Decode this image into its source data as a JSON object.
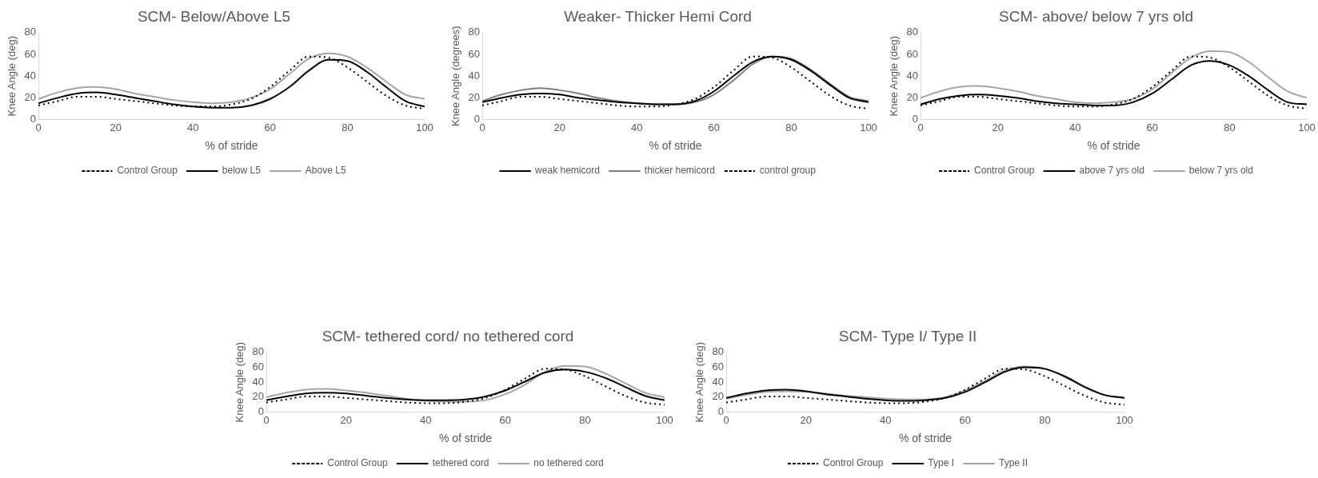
{
  "chart_data": [
    {
      "type": "line",
      "title": "SCM- Below/Above L5",
      "xlabel": "% of stride",
      "ylabel": "Knee Angle (deg)",
      "xlim": [
        0,
        100
      ],
      "xticks": [
        0,
        20,
        40,
        60,
        80,
        100
      ],
      "ylim": [
        0,
        80
      ],
      "yticks": [
        0,
        20,
        40,
        60,
        80
      ],
      "grid": false,
      "legend": "bottom",
      "marker": "none",
      "x": [
        0,
        5,
        10,
        15,
        20,
        25,
        30,
        35,
        40,
        45,
        50,
        55,
        60,
        65,
        70,
        75,
        80,
        85,
        90,
        95,
        100
      ],
      "series": [
        {
          "name": "Control Group",
          "color": "#000000",
          "line_style": "dotted",
          "values": [
            13,
            17,
            21,
            21,
            19,
            17,
            15,
            13,
            12,
            12,
            14,
            19,
            30,
            45,
            58,
            57,
            48,
            35,
            22,
            13,
            10
          ]
        },
        {
          "name": "below L5",
          "color": "#000000",
          "line_style": "solid",
          "values": [
            15,
            20,
            24,
            25,
            23,
            20,
            17,
            14,
            12,
            11,
            11,
            13,
            19,
            30,
            45,
            55,
            54,
            44,
            30,
            17,
            12
          ]
        },
        {
          "name": "Above L5",
          "color": "#a6a6a6",
          "line_style": "solid",
          "values": [
            19,
            25,
            29,
            30,
            28,
            24,
            21,
            18,
            16,
            15,
            16,
            20,
            28,
            42,
            56,
            61,
            58,
            48,
            35,
            23,
            19
          ]
        }
      ]
    },
    {
      "type": "line",
      "title": "Weaker- Thicker Hemi Cord",
      "xlabel": "% of stride",
      "ylabel": "Knee Angle (degrees)",
      "xlim": [
        0,
        100
      ],
      "xticks": [
        0,
        20,
        40,
        60,
        80,
        100
      ],
      "ylim": [
        0,
        80
      ],
      "yticks": [
        0,
        20,
        40,
        60,
        80
      ],
      "grid": false,
      "legend": "bottom",
      "marker": "none",
      "x": [
        0,
        5,
        10,
        15,
        20,
        25,
        30,
        35,
        40,
        45,
        50,
        55,
        60,
        65,
        70,
        75,
        80,
        85,
        90,
        95,
        100
      ],
      "series": [
        {
          "name": "weak hemicord",
          "color": "#000000",
          "line_style": "solid",
          "values": [
            16,
            20,
            23,
            24,
            23,
            20,
            18,
            16,
            15,
            14,
            14,
            17,
            26,
            40,
            53,
            58,
            55,
            45,
            32,
            20,
            16
          ]
        },
        {
          "name": "thicker hemicord",
          "color": "#7f7f7f",
          "line_style": "solid",
          "values": [
            17,
            23,
            27,
            29,
            27,
            24,
            20,
            17,
            15,
            14,
            14,
            16,
            23,
            36,
            51,
            58,
            56,
            46,
            33,
            21,
            17
          ]
        },
        {
          "name": "control group",
          "color": "#000000",
          "line_style": "dotted",
          "values": [
            13,
            17,
            21,
            21,
            19,
            17,
            15,
            13,
            12,
            12,
            14,
            19,
            30,
            45,
            58,
            57,
            48,
            35,
            22,
            13,
            10
          ]
        }
      ]
    },
    {
      "type": "line",
      "title": "SCM- above/ below 7 yrs old",
      "xlabel": "% of stride",
      "ylabel": "Knee Angle (deg)",
      "xlim": [
        0,
        100
      ],
      "xticks": [
        0,
        20,
        40,
        60,
        80,
        100
      ],
      "ylim": [
        0,
        80
      ],
      "yticks": [
        0,
        20,
        40,
        60,
        80
      ],
      "grid": false,
      "legend": "bottom",
      "marker": "none",
      "x": [
        0,
        5,
        10,
        15,
        20,
        25,
        30,
        35,
        40,
        45,
        50,
        55,
        60,
        65,
        70,
        75,
        80,
        85,
        90,
        95,
        100
      ],
      "series": [
        {
          "name": "Control Group",
          "color": "#000000",
          "line_style": "dotted",
          "values": [
            13,
            17,
            21,
            21,
            19,
            17,
            15,
            13,
            12,
            12,
            14,
            19,
            30,
            45,
            58,
            57,
            48,
            35,
            22,
            13,
            10
          ]
        },
        {
          "name": "above 7 yrs old",
          "color": "#000000",
          "line_style": "solid",
          "values": [
            14,
            19,
            22,
            23,
            22,
            20,
            17,
            15,
            14,
            13,
            13,
            16,
            24,
            37,
            50,
            54,
            50,
            40,
            27,
            16,
            14
          ]
        },
        {
          "name": "below 7 yrs old",
          "color": "#a6a6a6",
          "line_style": "solid",
          "values": [
            20,
            26,
            30,
            31,
            29,
            26,
            22,
            19,
            16,
            15,
            16,
            19,
            28,
            43,
            57,
            63,
            62,
            53,
            39,
            26,
            20
          ]
        }
      ]
    },
    {
      "type": "line",
      "title": "SCM- tethered cord/ no tethered cord",
      "xlabel": "% of stride",
      "ylabel": "Knee Angle (deg)",
      "xlim": [
        0,
        100
      ],
      "xticks": [
        0,
        20,
        40,
        60,
        80,
        100
      ],
      "ylim": [
        0,
        80
      ],
      "yticks": [
        0,
        20,
        40,
        60,
        80
      ],
      "grid": false,
      "legend": "bottom",
      "marker": "none",
      "x": [
        0,
        5,
        10,
        15,
        20,
        25,
        30,
        35,
        40,
        45,
        50,
        55,
        60,
        65,
        70,
        75,
        80,
        85,
        90,
        95,
        100
      ],
      "series": [
        {
          "name": "Control Group",
          "color": "#000000",
          "line_style": "dotted",
          "values": [
            13,
            17,
            21,
            21,
            19,
            17,
            15,
            13,
            12,
            12,
            14,
            19,
            30,
            45,
            58,
            57,
            48,
            35,
            22,
            13,
            10
          ]
        },
        {
          "name": "tethered cord",
          "color": "#000000",
          "line_style": "solid",
          "values": [
            16,
            21,
            25,
            26,
            25,
            22,
            19,
            17,
            16,
            16,
            17,
            21,
            29,
            41,
            53,
            57,
            54,
            46,
            34,
            22,
            16
          ]
        },
        {
          "name": "no tethered cord",
          "color": "#a6a6a6",
          "line_style": "solid",
          "values": [
            20,
            26,
            30,
            31,
            29,
            26,
            22,
            18,
            15,
            14,
            14,
            16,
            24,
            37,
            54,
            62,
            61,
            52,
            39,
            26,
            20
          ]
        }
      ]
    },
    {
      "type": "line",
      "title": "SCM- Type I/ Type II",
      "xlabel": "% of stride",
      "ylabel": "Knee Angle (deg)",
      "xlim": [
        0,
        100
      ],
      "xticks": [
        0,
        20,
        40,
        60,
        80,
        100
      ],
      "ylim": [
        0,
        80
      ],
      "yticks": [
        0,
        20,
        40,
        60,
        80
      ],
      "grid": false,
      "legend": "bottom",
      "marker": "none",
      "x": [
        0,
        5,
        10,
        15,
        20,
        25,
        30,
        35,
        40,
        45,
        50,
        55,
        60,
        65,
        70,
        75,
        80,
        85,
        90,
        95,
        100
      ],
      "series": [
        {
          "name": "Control Group",
          "color": "#000000",
          "line_style": "dotted",
          "values": [
            13,
            17,
            21,
            21,
            19,
            17,
            15,
            13,
            12,
            12,
            14,
            19,
            30,
            45,
            58,
            57,
            48,
            35,
            22,
            13,
            10
          ]
        },
        {
          "name": "Type I",
          "color": "#000000",
          "line_style": "solid",
          "values": [
            19,
            25,
            29,
            30,
            28,
            24,
            21,
            18,
            16,
            15,
            16,
            19,
            27,
            40,
            54,
            60,
            58,
            48,
            34,
            23,
            19
          ]
        },
        {
          "name": "Type II",
          "color": "#a6a6a6",
          "line_style": "solid",
          "values": [
            18,
            23,
            27,
            28,
            27,
            25,
            22,
            20,
            18,
            17,
            17,
            20,
            29,
            42,
            56,
            61,
            58,
            47,
            33,
            23,
            19
          ]
        }
      ]
    }
  ]
}
